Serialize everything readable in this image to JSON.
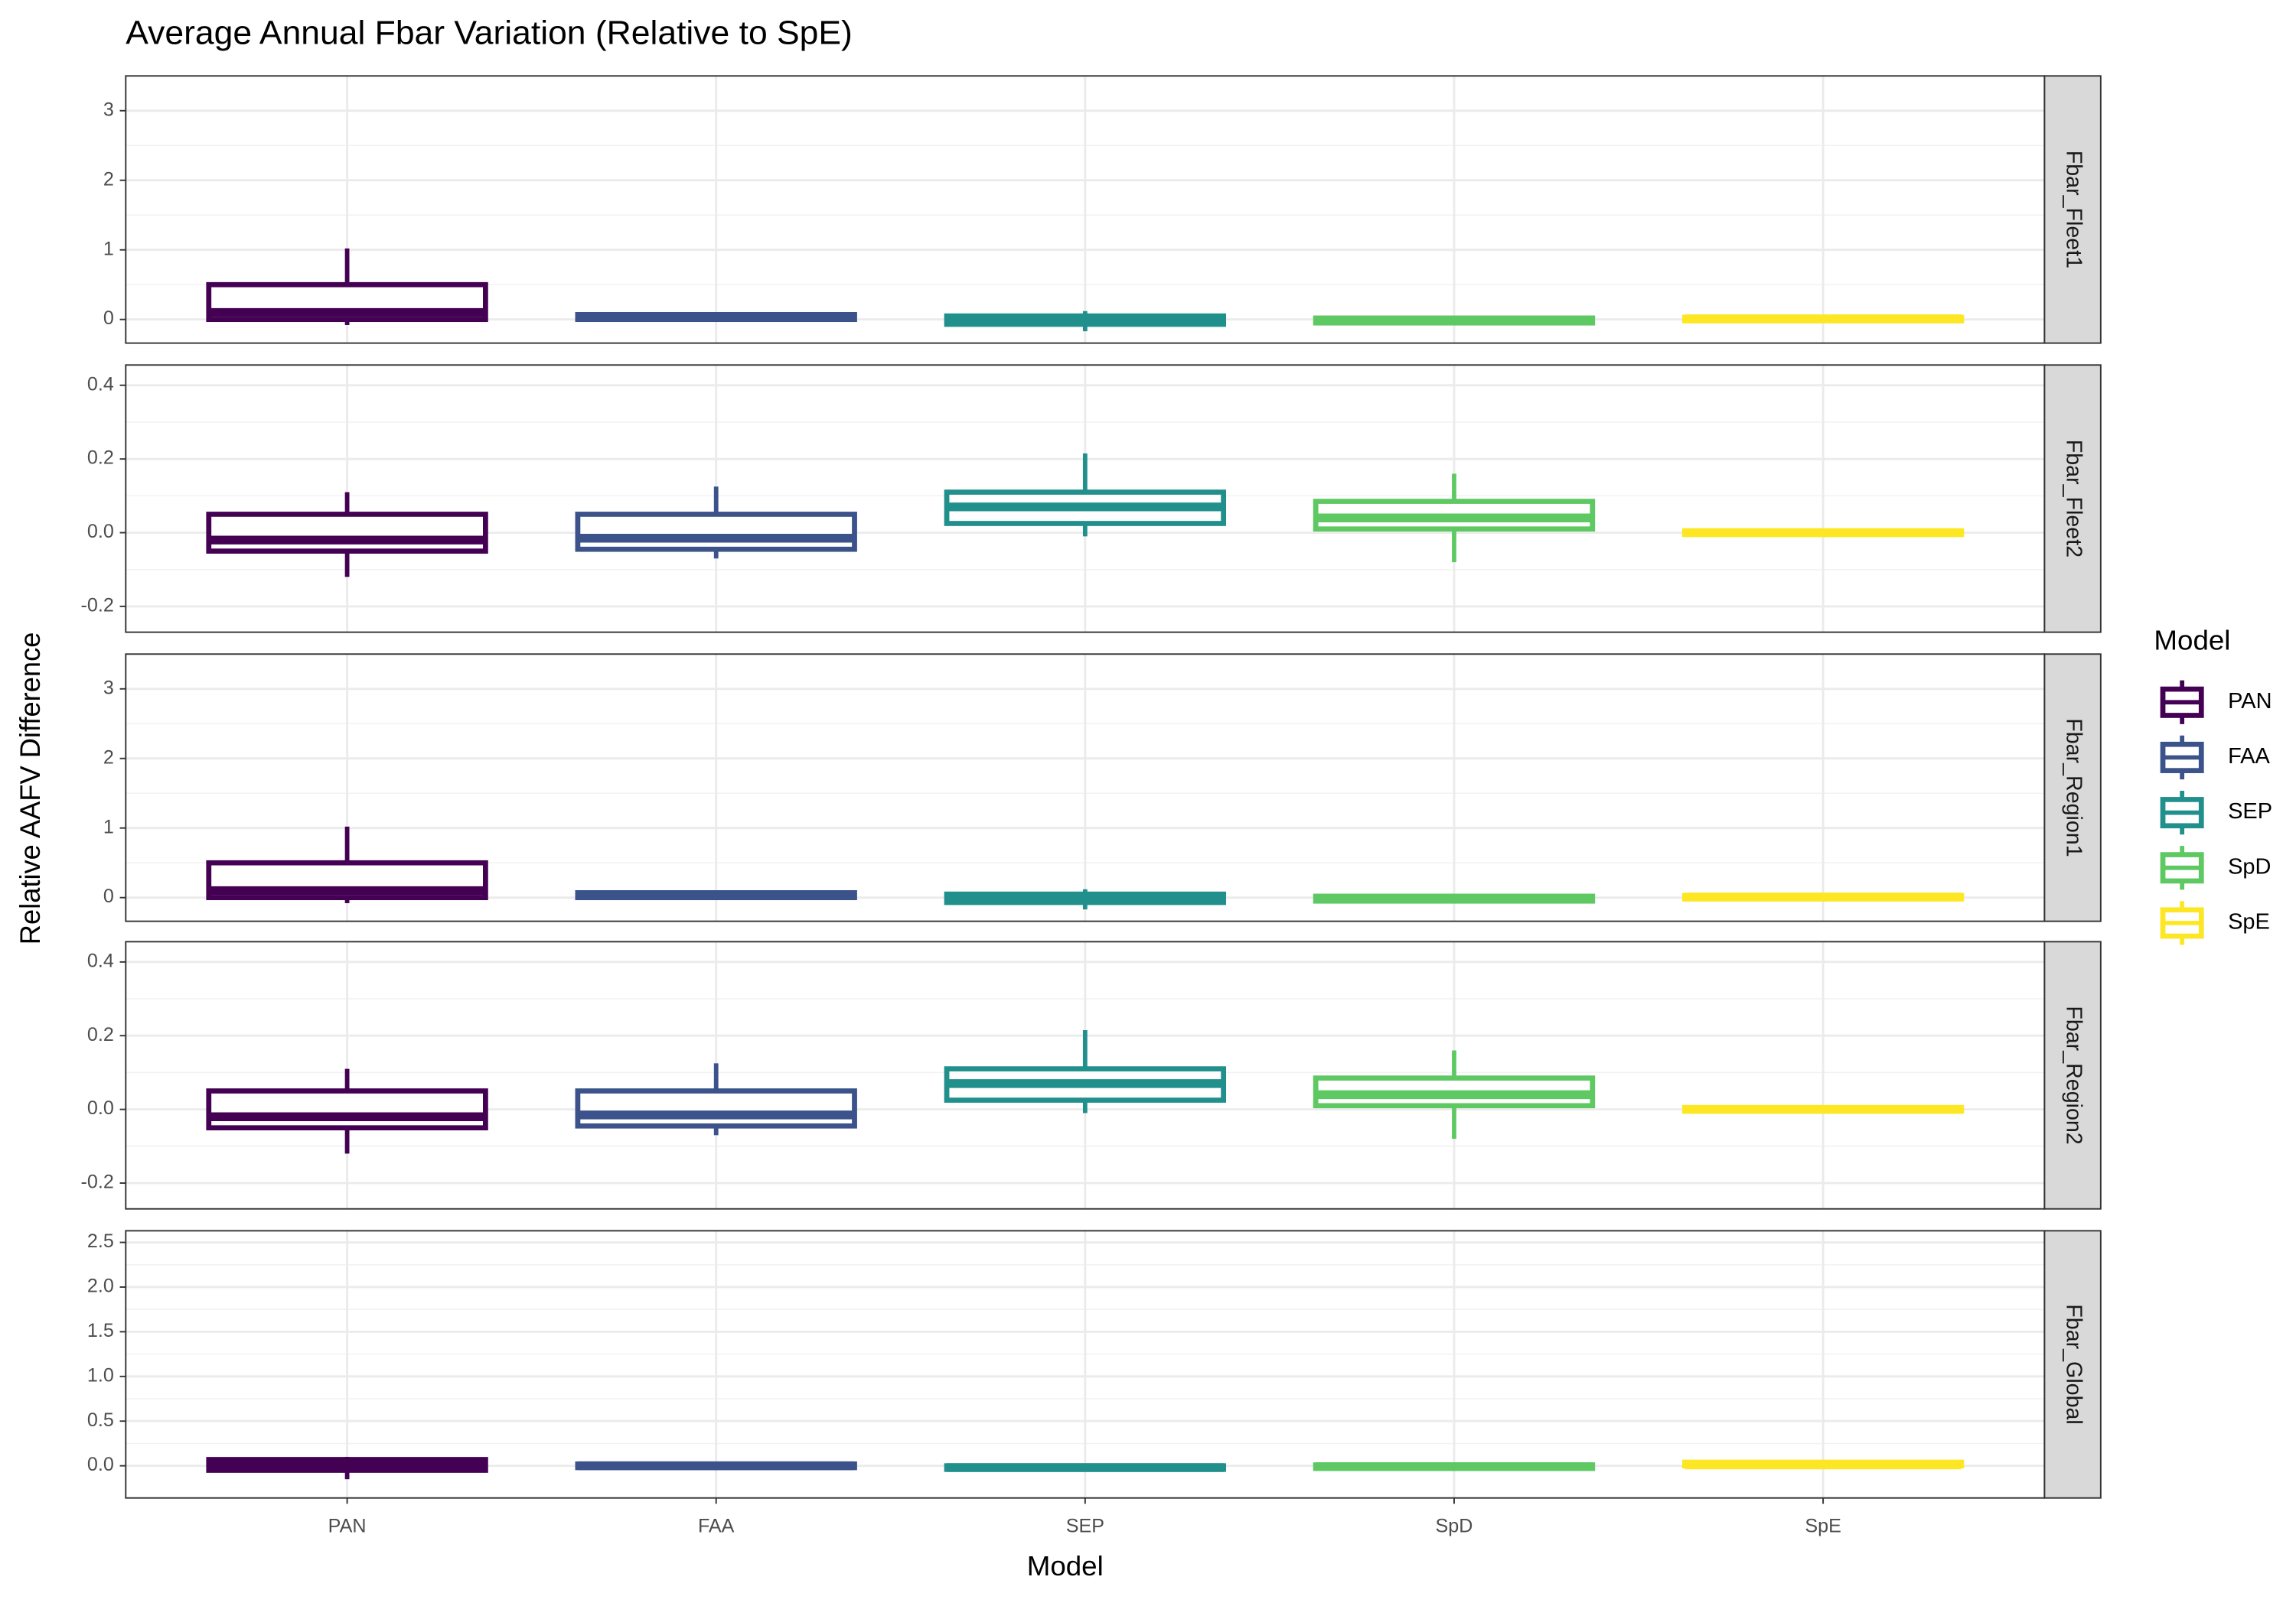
{
  "chart_data": {
    "type": "boxplot",
    "title": "Average Annual Fbar Variation (Relative to SpE)",
    "xlabel": "Model",
    "ylabel": "Relative AAFV Difference",
    "legend_title": "Model",
    "categories": [
      "PAN",
      "FAA",
      "SEP",
      "SpD",
      "SpE"
    ],
    "colors": [
      "#440154",
      "#3b528b",
      "#21908c",
      "#5ec962",
      "#fde725"
    ],
    "grid": true,
    "facets": [
      {
        "label": "Fbar_Fleet1",
        "ylim": [
          -0.34,
          3.5
        ],
        "yticks": [
          0,
          1,
          2,
          3
        ],
        "boxes": [
          {
            "min": -0.08,
            "q1": 0.0,
            "median": 0.1,
            "q3": 0.5,
            "max": 1.02
          },
          {
            "min": -0.02,
            "q1": 0.0,
            "median": 0.03,
            "q3": 0.07,
            "max": 0.1
          },
          {
            "min": -0.17,
            "q1": -0.07,
            "median": -0.03,
            "q3": 0.05,
            "max": 0.12
          },
          {
            "min": -0.08,
            "q1": -0.05,
            "median": -0.02,
            "q3": 0.02,
            "max": 0.03
          },
          {
            "min": -0.03,
            "q1": -0.02,
            "median": 0.01,
            "q3": 0.03,
            "max": 0.05
          }
        ]
      },
      {
        "label": "Fbar_Fleet2",
        "ylim": [
          -0.27,
          0.455
        ],
        "yticks": [
          -0.2,
          {
            "value": 0,
            "label": "0.0"
          },
          0.2,
          0.4
        ],
        "boxes": [
          {
            "min": -0.12,
            "q1": -0.05,
            "median": -0.02,
            "q3": 0.05,
            "max": 0.11
          },
          {
            "min": -0.07,
            "q1": -0.045,
            "median": -0.015,
            "q3": 0.05,
            "max": 0.125
          },
          {
            "min": -0.01,
            "q1": 0.025,
            "median": 0.07,
            "q3": 0.11,
            "max": 0.215
          },
          {
            "min": -0.08,
            "q1": 0.01,
            "median": 0.04,
            "q3": 0.085,
            "max": 0.16
          },
          {
            "min": -0.01,
            "q1": -0.005,
            "median": 0,
            "q3": 0.005,
            "max": 0.01
          }
        ]
      },
      {
        "label": "Fbar_Region1",
        "ylim": [
          -0.34,
          3.5
        ],
        "yticks": [
          0,
          1,
          2,
          3
        ],
        "boxes": [
          {
            "min": -0.08,
            "q1": 0.0,
            "median": 0.1,
            "q3": 0.5,
            "max": 1.02
          },
          {
            "min": -0.02,
            "q1": 0.0,
            "median": 0.03,
            "q3": 0.07,
            "max": 0.1
          },
          {
            "min": -0.17,
            "q1": -0.07,
            "median": -0.03,
            "q3": 0.05,
            "max": 0.12
          },
          {
            "min": -0.08,
            "q1": -0.05,
            "median": -0.02,
            "q3": 0.02,
            "max": 0.03
          },
          {
            "min": -0.03,
            "q1": -0.02,
            "median": 0.01,
            "q3": 0.03,
            "max": 0.05
          }
        ]
      },
      {
        "label": "Fbar_Region2",
        "ylim": [
          -0.27,
          0.455
        ],
        "yticks": [
          -0.2,
          {
            "value": 0,
            "label": "0.0"
          },
          0.2,
          0.4
        ],
        "boxes": [
          {
            "min": -0.12,
            "q1": -0.05,
            "median": -0.02,
            "q3": 0.05,
            "max": 0.11
          },
          {
            "min": -0.07,
            "q1": -0.045,
            "median": -0.015,
            "q3": 0.05,
            "max": 0.125
          },
          {
            "min": -0.01,
            "q1": 0.025,
            "median": 0.07,
            "q3": 0.11,
            "max": 0.215
          },
          {
            "min": -0.08,
            "q1": 0.01,
            "median": 0.04,
            "q3": 0.085,
            "max": 0.16
          },
          {
            "min": -0.01,
            "q1": -0.005,
            "median": 0,
            "q3": 0.005,
            "max": 0.01
          }
        ]
      },
      {
        "label": "Fbar_Global",
        "ylim": [
          -0.36,
          2.63
        ],
        "yticks": [
          {
            "value": 0,
            "label": "0.0"
          },
          0.5,
          {
            "value": 1,
            "label": "1.0"
          },
          1.5,
          {
            "value": 2,
            "label": "2.0"
          },
          2.5
        ],
        "boxes": [
          {
            "min": -0.15,
            "q1": -0.05,
            "median": 0,
            "q3": 0.07,
            "max": 0.1
          },
          {
            "min": -0.03,
            "q1": -0.02,
            "median": 0,
            "q3": 0.02,
            "max": 0.04
          },
          {
            "min": -0.05,
            "q1": -0.04,
            "median": -0.02,
            "q3": 0,
            "max": 0.02
          },
          {
            "min": -0.04,
            "q1": -0.03,
            "median": -0.01,
            "q3": 0.01,
            "max": 0.02
          },
          {
            "min": -0.01,
            "q1": 0,
            "median": 0.01,
            "q3": 0.04,
            "max": 0.05
          }
        ]
      }
    ]
  }
}
